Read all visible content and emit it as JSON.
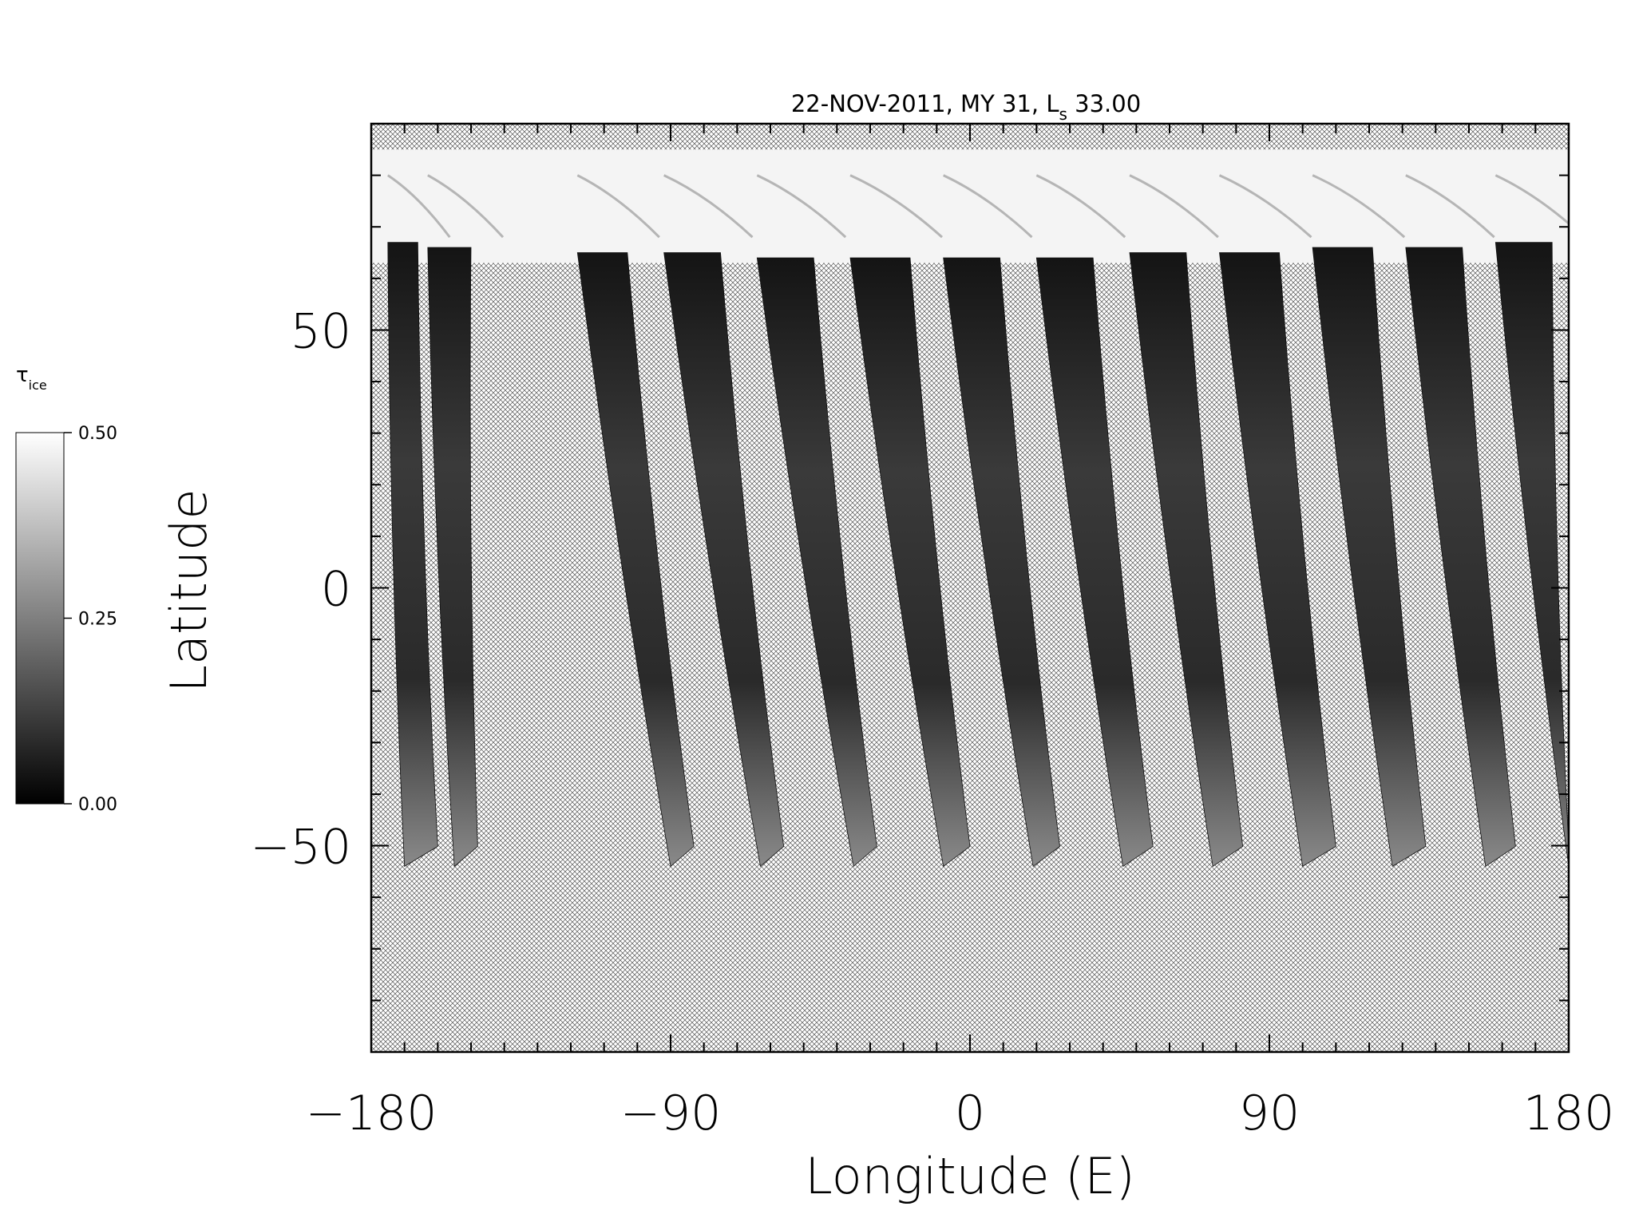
{
  "chart_data": {
    "type": "heatmap",
    "title": "22-NOV-2011, MY 31,  L",
    "title_subscript": "s",
    "title_value": " 33.00",
    "xlabel": "Longitude (E)",
    "ylabel": "Latitude",
    "xlim": [
      -180,
      180
    ],
    "ylim": [
      -90,
      90
    ],
    "x_ticks": [
      -180,
      -90,
      0,
      90,
      180
    ],
    "x_tick_labels": [
      "−180",
      "−90",
      "0",
      "90",
      "180"
    ],
    "y_ticks": [
      -50,
      0,
      50
    ],
    "y_tick_labels": [
      "−50",
      "0",
      "50"
    ],
    "minor_x_step": 10,
    "minor_y_step": 10,
    "no_data_pattern": "crosshatch",
    "colorbar": {
      "label": "τ",
      "label_subscript": "ice",
      "range": [
        0,
        0.5
      ],
      "ticks": [
        0.0,
        0.25,
        0.5
      ],
      "tick_labels": [
        "0.00",
        "0.25",
        "0.50"
      ],
      "colormap": "grayscale"
    },
    "polar_cap": {
      "lat_bottom": 63,
      "lat_top": 85,
      "tau": 0.5
    },
    "swaths": [
      {
        "lon_top": [
          -175,
          -166
        ],
        "lon_bottom": [
          -170,
          -160
        ],
        "lat_top": 67,
        "lat_bottom": -54
      },
      {
        "lon_top": [
          -163,
          -150
        ],
        "lon_bottom": [
          -155,
          -148
        ],
        "lat_top": 66,
        "lat_bottom": -54
      },
      {
        "lon_top": [
          -118,
          -103
        ],
        "lon_bottom": [
          -90,
          -83
        ],
        "lat_top": 65,
        "lat_bottom": -54
      },
      {
        "lon_top": [
          -92,
          -75
        ],
        "lon_bottom": [
          -63,
          -56
        ],
        "lat_top": 65,
        "lat_bottom": -54
      },
      {
        "lon_top": [
          -64,
          -47
        ],
        "lon_bottom": [
          -35,
          -28
        ],
        "lat_top": 64,
        "lat_bottom": -54
      },
      {
        "lon_top": [
          -36,
          -18
        ],
        "lon_bottom": [
          -8,
          0
        ],
        "lat_top": 64,
        "lat_bottom": -54
      },
      {
        "lon_top": [
          -8,
          9
        ],
        "lon_bottom": [
          19,
          27
        ],
        "lat_top": 64,
        "lat_bottom": -54
      },
      {
        "lon_top": [
          20,
          37
        ],
        "lon_bottom": [
          46,
          55
        ],
        "lat_top": 64,
        "lat_bottom": -54
      },
      {
        "lon_top": [
          48,
          65
        ],
        "lon_bottom": [
          73,
          82
        ],
        "lat_top": 65,
        "lat_bottom": -54
      },
      {
        "lon_top": [
          75,
          93
        ],
        "lon_bottom": [
          100,
          110
        ],
        "lat_top": 65,
        "lat_bottom": -54
      },
      {
        "lon_top": [
          103,
          121
        ],
        "lon_bottom": [
          127,
          137
        ],
        "lat_top": 66,
        "lat_bottom": -54
      },
      {
        "lon_top": [
          131,
          148
        ],
        "lon_bottom": [
          155,
          164
        ],
        "lat_top": 66,
        "lat_bottom": -54
      },
      {
        "lon_top": [
          158,
          175
        ],
        "lon_bottom": [
          180,
          180
        ],
        "lat_top": 67,
        "lat_bottom": -54
      }
    ]
  }
}
